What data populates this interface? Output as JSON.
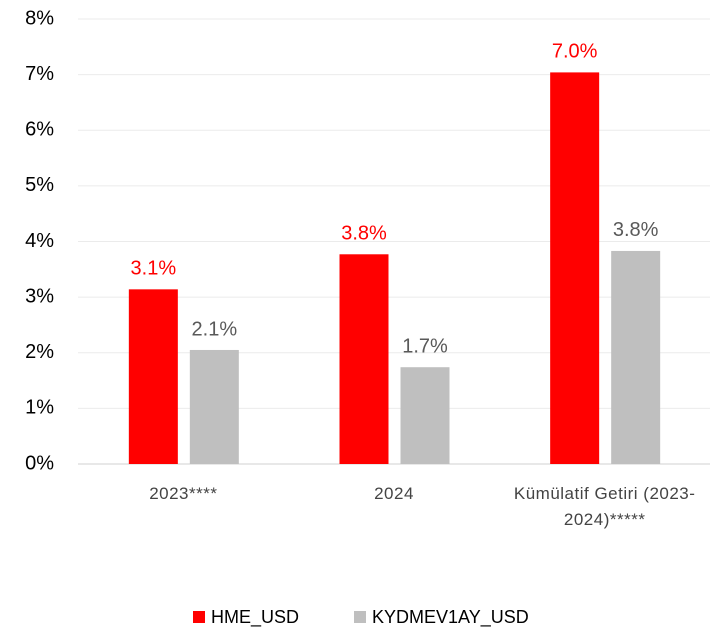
{
  "chart_data": {
    "type": "bar",
    "categories": [
      "2023****",
      "2024",
      "Kümülatif Getiri (2023-2024)*****"
    ],
    "series": [
      {
        "name": "HME_USD",
        "color": "#ff0000",
        "values": [
          3.14,
          3.77,
          7.04
        ],
        "value_labels": [
          "3.1%",
          "3.8%",
          "7.0%"
        ]
      },
      {
        "name": "KYDMEV1AY_USD",
        "color": "#bfbfbf",
        "values": [
          2.05,
          1.74,
          3.83
        ],
        "value_labels": [
          "2.1%",
          "1.7%",
          "3.8%"
        ]
      }
    ],
    "ylim": [
      0,
      8
    ],
    "yticks": [
      {
        "value": 0,
        "label": "0%"
      },
      {
        "value": 1,
        "label": "1%"
      },
      {
        "value": 2,
        "label": "2%"
      },
      {
        "value": 3,
        "label": "3%"
      },
      {
        "value": 4,
        "label": "4%"
      },
      {
        "value": 5,
        "label": "5%"
      },
      {
        "value": 6,
        "label": "6%"
      },
      {
        "value": 7,
        "label": "7%"
      },
      {
        "value": 8,
        "label": "8%"
      }
    ],
    "grid": true,
    "legend": "bottom"
  }
}
